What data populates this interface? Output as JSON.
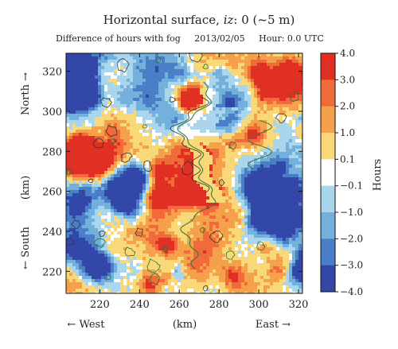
{
  "chart_data": {
    "type": "heatmap",
    "title_prefix": "Horizontal surface, ",
    "title_var": "iz",
    "title_suffix": ": 0 (~5 m)",
    "subtitle": {
      "label": "Difference of hours with fog",
      "date": "2013/02/05",
      "hour": "Hour: 0.0 UTC"
    },
    "x_ticks": [
      220,
      240,
      260,
      280,
      300,
      320
    ],
    "y_ticks": [
      220,
      240,
      260,
      280,
      300,
      320
    ],
    "xlim": [
      203,
      322
    ],
    "ylim": [
      209,
      329
    ],
    "x_axis": {
      "left": "← West",
      "center": "(km)",
      "right": "East →"
    },
    "y_axis": {
      "top": "North →",
      "center": "(km)",
      "bottom": "← South"
    },
    "colorbar": {
      "label": "Hours",
      "levels": [
        "4.0",
        "3.0",
        "2.0",
        "1.0",
        "0.1",
        "−0.1",
        "−1.0",
        "−2.0",
        "−3.0",
        "−4.0"
      ],
      "colors": [
        "#e03023",
        "#f06a3a",
        "#f5a04a",
        "#f8d878",
        "#ffffff",
        "#a9d6ec",
        "#74b0dc",
        "#4a7fc8",
        "#3347a8"
      ]
    }
  }
}
